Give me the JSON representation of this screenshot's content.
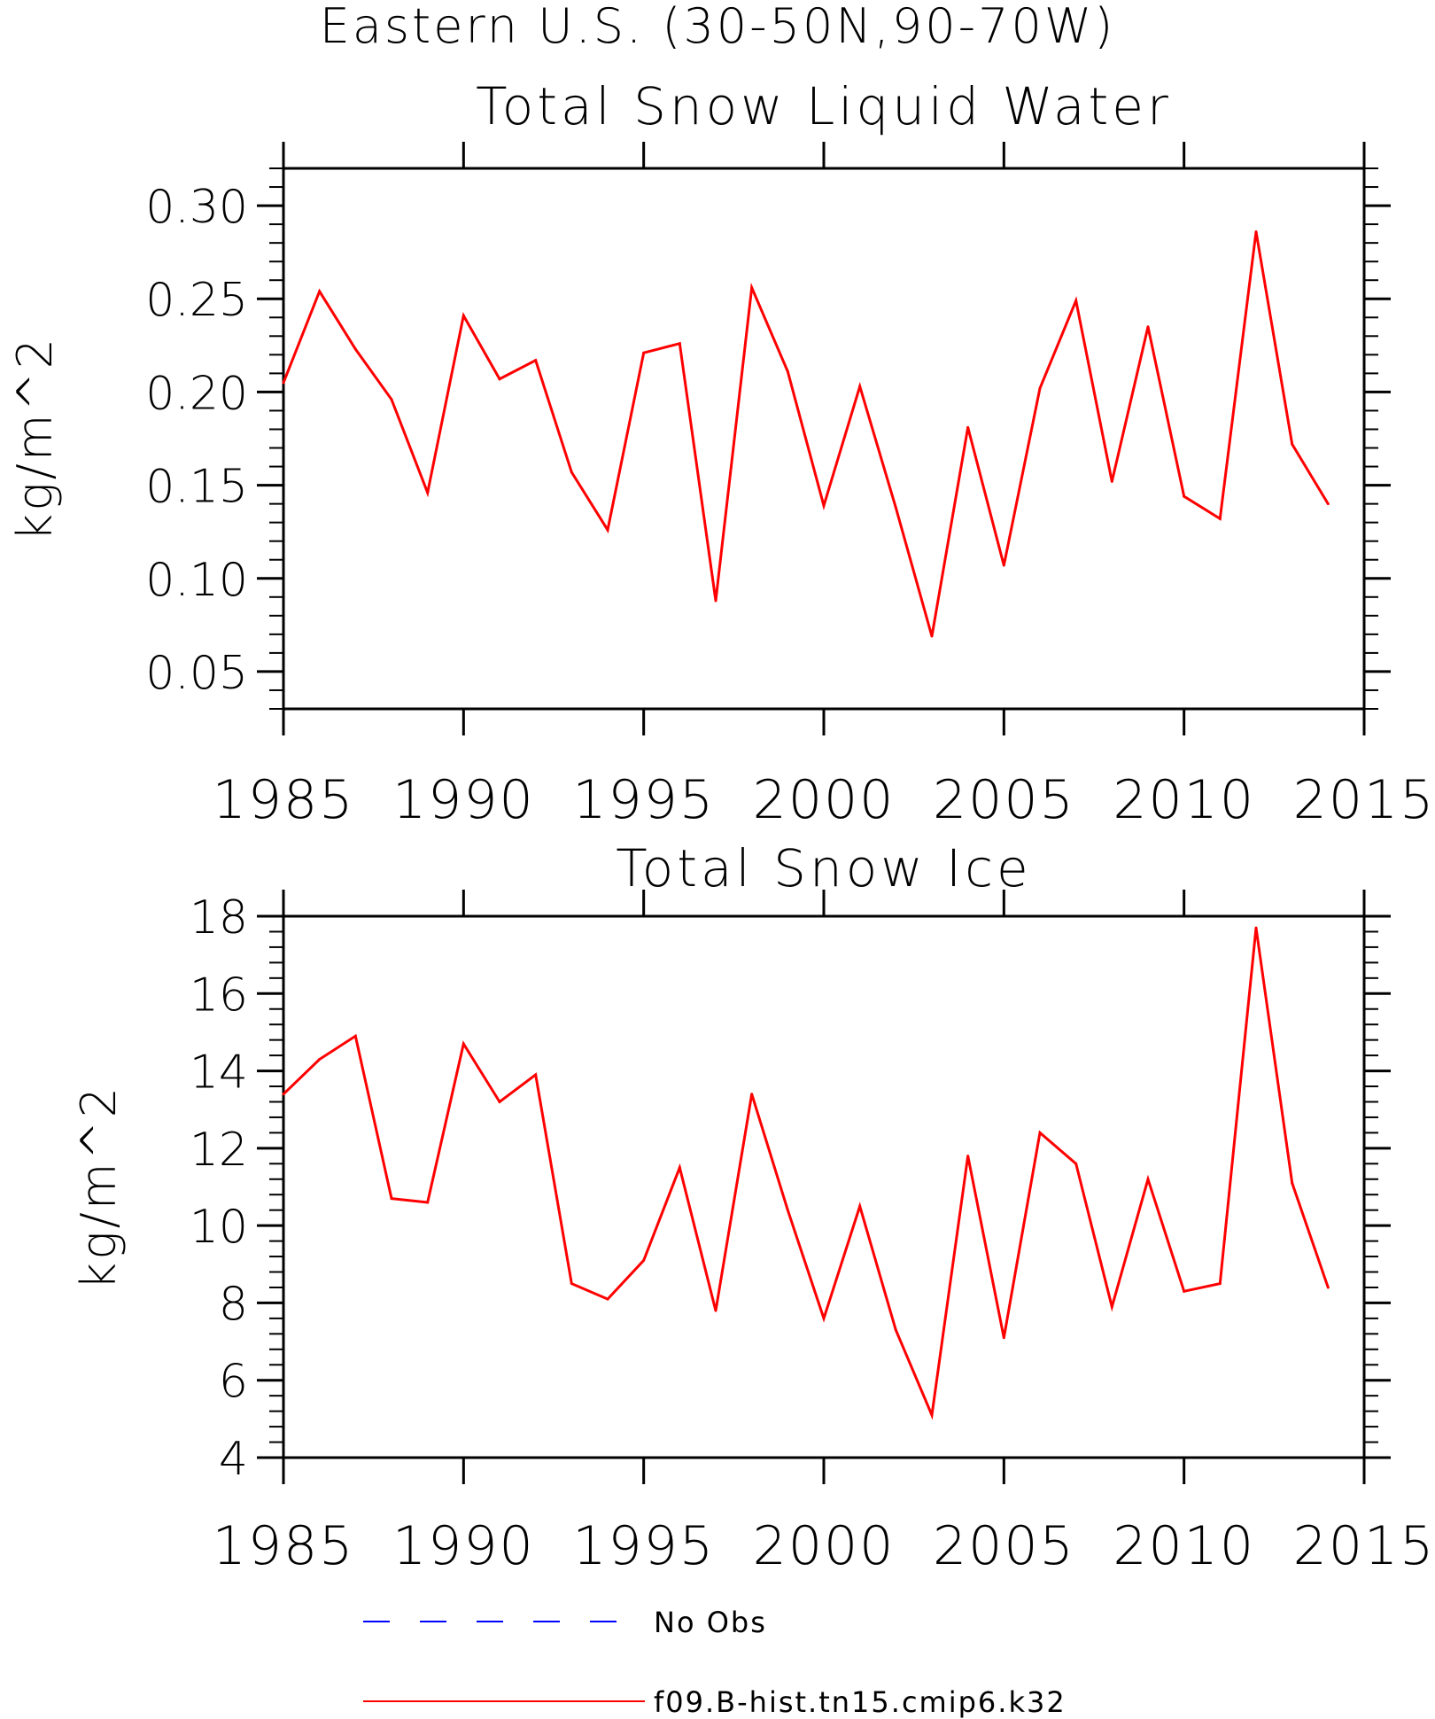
{
  "figure": {
    "title": "Eastern U.S. (30-50N,90-70W)"
  },
  "legend": [
    {
      "label": "No Obs",
      "color": "#0000ff",
      "style": "dashed"
    },
    {
      "label": "f09.B-hist.tn15.cmip6.k32",
      "color": "#ff0000",
      "style": "solid"
    }
  ],
  "chart_data": [
    {
      "type": "line",
      "title": "Total Snow Liquid Water",
      "xlabel": "",
      "ylabel": "kg/m^2",
      "xlim": [
        1985,
        2015
      ],
      "ylim": [
        0.03,
        0.32
      ],
      "x_ticks": [
        1985,
        1990,
        1995,
        2000,
        2005,
        2010,
        2015
      ],
      "y_ticks": [
        "0.05",
        "0.10",
        "0.15",
        "0.20",
        "0.25",
        "0.30"
      ],
      "x": [
        1985,
        1986,
        1987,
        1988,
        1989,
        1990,
        1991,
        1992,
        1993,
        1994,
        1995,
        1996,
        1997,
        1998,
        1999,
        2000,
        2001,
        2002,
        2003,
        2004,
        2005,
        2006,
        2007,
        2008,
        2009,
        2010,
        2011,
        2012,
        2013,
        2014
      ],
      "series": [
        {
          "name": "f09.B-hist.tn15.cmip6.k32",
          "color": "#ff0000",
          "values": [
            0.205,
            0.254,
            0.223,
            0.196,
            0.146,
            0.241,
            0.207,
            0.217,
            0.157,
            0.126,
            0.221,
            0.226,
            0.088,
            0.256,
            0.211,
            0.139,
            0.203,
            0.138,
            0.069,
            0.181,
            0.107,
            0.202,
            0.249,
            0.152,
            0.235,
            0.144,
            0.132,
            0.286,
            0.172,
            0.14
          ]
        }
      ],
      "grid": false
    },
    {
      "type": "line",
      "title": "Total Snow Ice",
      "xlabel": "",
      "ylabel": "kg/m^2",
      "xlim": [
        1985,
        2015
      ],
      "ylim": [
        4,
        18
      ],
      "x_ticks": [
        1985,
        1990,
        1995,
        2000,
        2005,
        2010,
        2015
      ],
      "y_ticks": [
        "4",
        "6",
        "8",
        "10",
        "12",
        "14",
        "16",
        "18"
      ],
      "x": [
        1985,
        1986,
        1987,
        1988,
        1989,
        1990,
        1991,
        1992,
        1993,
        1994,
        1995,
        1996,
        1997,
        1998,
        1999,
        2000,
        2001,
        2002,
        2003,
        2004,
        2005,
        2006,
        2007,
        2008,
        2009,
        2010,
        2011,
        2012,
        2013,
        2014
      ],
      "series": [
        {
          "name": "f09.B-hist.tn15.cmip6.k32",
          "color": "#ff0000",
          "values": [
            13.4,
            14.3,
            14.9,
            10.7,
            10.6,
            14.7,
            13.2,
            13.9,
            8.5,
            8.1,
            9.1,
            11.5,
            7.8,
            13.4,
            10.4,
            7.6,
            10.5,
            7.3,
            5.1,
            11.8,
            7.1,
            12.4,
            11.6,
            7.9,
            11.2,
            8.3,
            8.5,
            17.7,
            11.1,
            8.4
          ]
        }
      ],
      "grid": false
    }
  ]
}
